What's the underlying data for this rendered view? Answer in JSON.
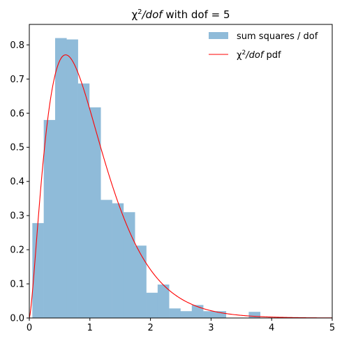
{
  "chart_data": {
    "type": "bar",
    "title": {
      "prefix": "χ",
      "sup": "2",
      "italic": "/dof",
      "suffix": " with dof = 5"
    },
    "xlabel": "",
    "ylabel": "",
    "xlim": [
      0,
      5
    ],
    "ylim": [
      0,
      0.86
    ],
    "xticks": [
      "0",
      "1",
      "2",
      "3",
      "4",
      "5"
    ],
    "yticks": [
      "0.0",
      "0.1",
      "0.2",
      "0.3",
      "0.4",
      "0.5",
      "0.6",
      "0.7",
      "0.8"
    ],
    "grid": false,
    "legend_position": "top-right",
    "histogram": {
      "name": "sum squares / dof",
      "color": "#8fbbd9",
      "bin_width": 0.188,
      "bin_starts": [
        0.05,
        0.238,
        0.426,
        0.614,
        0.802,
        0.99,
        1.178,
        1.366,
        1.554,
        1.742,
        1.93,
        2.118,
        2.306,
        2.494,
        2.682,
        2.87,
        3.058,
        3.246,
        3.434,
        3.622
      ],
      "values": [
        0.278,
        0.58,
        0.82,
        0.816,
        0.687,
        0.617,
        0.346,
        0.336,
        0.31,
        0.212,
        0.074,
        0.098,
        0.028,
        0.02,
        0.038,
        0.02,
        0.02,
        0.0,
        0.0,
        0.018
      ]
    },
    "pdf": {
      "label_prefix": "χ",
      "label_sup": "2",
      "label_italic": "/dof",
      "label_suffix": " pdf",
      "color": "#ff0000",
      "dof": 5
    }
  }
}
